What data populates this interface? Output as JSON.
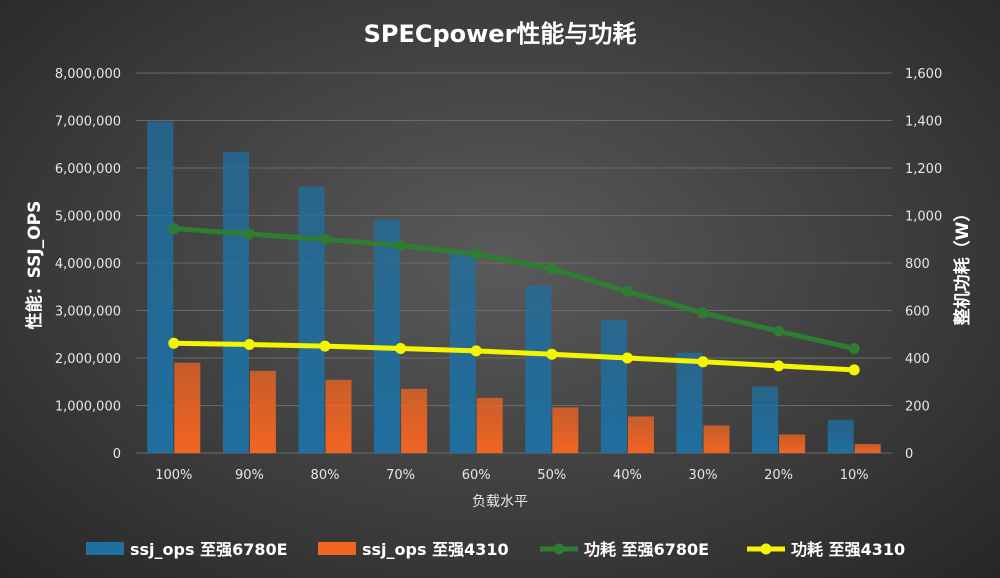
{
  "chart_data": {
    "type": "bar",
    "title": "SPECpower性能与功耗",
    "categories": [
      "100%",
      "90%",
      "80%",
      "70%",
      "60%",
      "50%",
      "40%",
      "30%",
      "20%",
      "10%"
    ],
    "xlabel": "负载水平",
    "ylabel": "性能：SSJ_OPS",
    "y2label": "整机功耗（W）",
    "ylim": [
      0,
      8000000
    ],
    "y2lim": [
      0,
      1600
    ],
    "yticks": [
      "0",
      "1,000,000",
      "2,000,000",
      "3,000,000",
      "4,000,000",
      "5,000,000",
      "6,000,000",
      "7,000,000",
      "8,000,000"
    ],
    "y2ticks": [
      "0",
      "200",
      "400",
      "600",
      "800",
      "1,000",
      "1,200",
      "1,400",
      "1,600"
    ],
    "grid": true,
    "legend_position": "bottom",
    "series": [
      {
        "name": "ssj_ops 至强6780E",
        "type": "bar",
        "axis": "left",
        "color": "#1f6fa0",
        "values": [
          6980000,
          6340000,
          5610000,
          4920000,
          4250000,
          3520000,
          2810000,
          2110000,
          1400000,
          700000
        ]
      },
      {
        "name": "ssj_ops 至强4310",
        "type": "bar",
        "axis": "left",
        "color": "#f26522",
        "values": [
          1900000,
          1730000,
          1540000,
          1350000,
          1160000,
          960000,
          770000,
          580000,
          390000,
          190000
        ]
      },
      {
        "name": "功耗 至强6780E",
        "type": "line",
        "axis": "right",
        "color": "#2e7d32",
        "values": [
          945,
          922,
          900,
          873,
          838,
          776,
          680,
          590,
          513,
          440
        ]
      },
      {
        "name": "功耗 至强4310",
        "type": "line",
        "axis": "right",
        "color": "#f5f500",
        "values": [
          462,
          457,
          450,
          440,
          430,
          416,
          400,
          384,
          367,
          350
        ]
      }
    ]
  }
}
